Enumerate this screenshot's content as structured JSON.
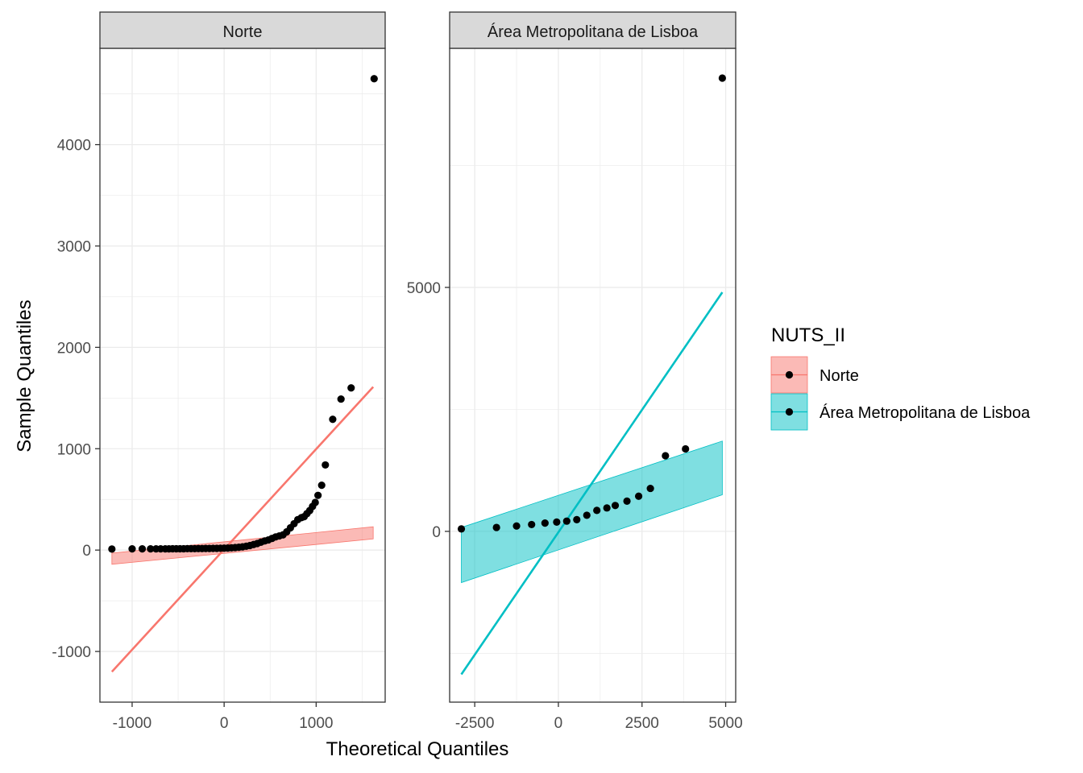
{
  "chart_data": {
    "type": "scatter",
    "subtype": "qq-plot-faceted",
    "xlabel": "Theoretical Quantiles",
    "ylabel": "Sample Quantiles",
    "legend": {
      "title": "NUTS_II",
      "placement": "right",
      "entries": [
        {
          "name": "Norte",
          "color": "#F8766D"
        },
        {
          "name": "Área Metropolitana de Lisboa",
          "color": "#00BFC4"
        }
      ]
    },
    "grid": true,
    "facets": [
      {
        "name": "Norte",
        "color": "#F8766D",
        "xlim": [
          -1350,
          1750
        ],
        "ylim": [
          -1500,
          4950
        ],
        "xticks": [
          -1000,
          0,
          1000
        ],
        "xtick_labels": [
          "-1000",
          "0",
          "1000"
        ],
        "yticks": [
          -1000,
          0,
          1000,
          2000,
          3000,
          4000
        ],
        "ytick_labels": [
          "-1000",
          "0",
          "1000",
          "2000",
          "3000",
          "4000"
        ],
        "line": {
          "x": [
            -1220,
            1620
          ],
          "y": [
            -1200,
            1610
          ]
        },
        "band": {
          "x": [
            -1220,
            1620
          ],
          "lower": [
            -140,
            110
          ],
          "upper": [
            -30,
            230
          ]
        },
        "points": {
          "x": [
            -1220,
            -1000,
            -890,
            -800,
            -740,
            -690,
            -640,
            -600,
            -560,
            -520,
            -480,
            -440,
            -400,
            -360,
            -320,
            -280,
            -240,
            -200,
            -160,
            -120,
            -80,
            -40,
            0,
            40,
            80,
            120,
            160,
            200,
            240,
            280,
            320,
            360,
            400,
            440,
            480,
            520,
            560,
            600,
            640,
            680,
            720,
            760,
            800,
            840,
            870,
            900,
            930,
            960,
            990,
            1020,
            1060,
            1100,
            1180,
            1270,
            1380,
            1630
          ],
          "y": [
            10,
            12,
            12,
            12,
            12,
            12,
            12,
            12,
            13,
            13,
            13,
            13,
            14,
            14,
            14,
            15,
            15,
            16,
            16,
            17,
            17,
            18,
            19,
            20,
            22,
            25,
            28,
            32,
            38,
            45,
            55,
            65,
            78,
            90,
            100,
            115,
            130,
            140,
            150,
            180,
            220,
            260,
            300,
            320,
            330,
            360,
            390,
            430,
            470,
            540,
            640,
            840,
            1290,
            1490,
            1600,
            4650
          ]
        }
      },
      {
        "name": "Área Metropolitana de Lisboa",
        "color": "#00BFC4",
        "xlim": [
          -3250,
          5300
        ],
        "ylim": [
          -3500,
          9900
        ],
        "xticks": [
          -2500,
          0,
          2500,
          5000
        ],
        "xtick_labels": [
          "-2500",
          "0",
          "2500",
          "5000"
        ],
        "yticks": [
          0,
          5000
        ],
        "ytick_labels": [
          "0",
          "5000"
        ],
        "line": {
          "x": [
            -2900,
            4900
          ],
          "y": [
            -2930,
            4900
          ]
        },
        "band": {
          "x": [
            -2900,
            4900
          ],
          "lower": [
            -1050,
            750
          ],
          "upper": [
            80,
            1850
          ]
        },
        "points": {
          "x": [
            -2900,
            -1850,
            -1250,
            -800,
            -400,
            -50,
            250,
            550,
            850,
            1150,
            1450,
            1700,
            2050,
            2400,
            2750,
            3200,
            3800,
            4900
          ],
          "y": [
            50,
            80,
            110,
            140,
            170,
            190,
            210,
            240,
            330,
            430,
            480,
            530,
            620,
            720,
            880,
            1550,
            1690,
            9290
          ]
        }
      }
    ]
  }
}
